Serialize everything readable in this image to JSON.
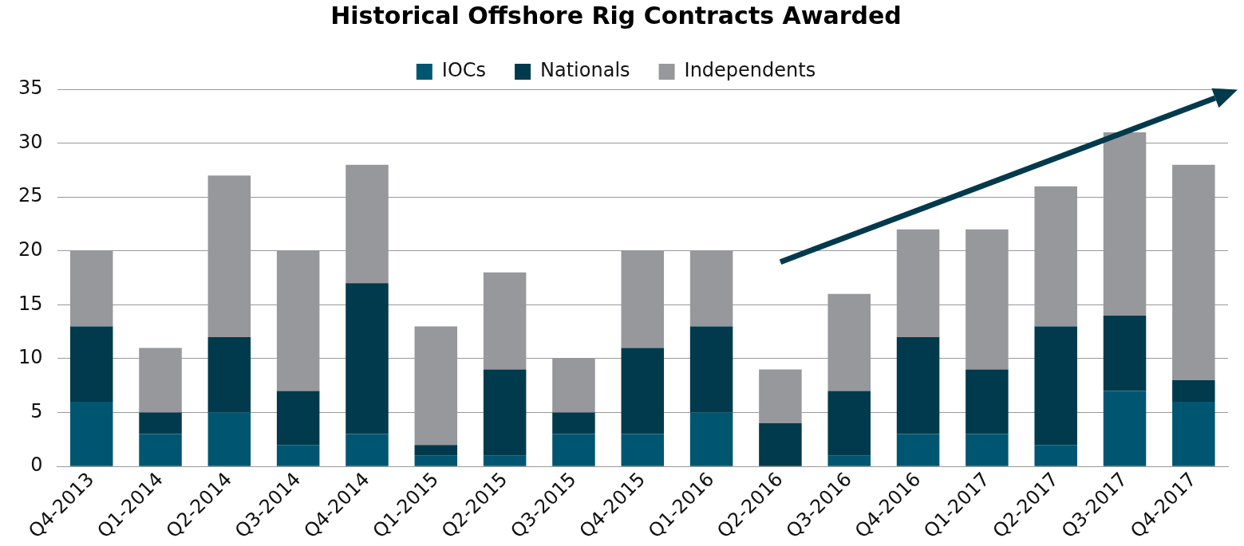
{
  "chart_data": {
    "type": "bar",
    "title": "Historical Offshore Rig Contracts Awarded",
    "stacked": true,
    "categories": [
      "Q4-2013",
      "Q1-2014",
      "Q2-2014",
      "Q3-2014",
      "Q4-2014",
      "Q1-2015",
      "Q2-2015",
      "Q3-2015",
      "Q4-2015",
      "Q1-2016",
      "Q2-2016",
      "Q3-2016",
      "Q4-2016",
      "Q1-2017",
      "Q2-2017",
      "Q3-2017",
      "Q4-2017"
    ],
    "series": [
      {
        "name": "IOCs",
        "color": "#005670",
        "values": [
          6,
          3,
          5,
          2,
          3,
          1,
          1,
          3,
          3,
          5,
          0,
          1,
          3,
          3,
          2,
          7,
          6
        ]
      },
      {
        "name": "Nationals",
        "color": "#003a4c",
        "values": [
          7,
          2,
          7,
          5,
          14,
          1,
          8,
          2,
          8,
          8,
          4,
          6,
          9,
          6,
          11,
          7,
          2
        ]
      },
      {
        "name": "Independents",
        "color": "#97989c",
        "values": [
          7,
          6,
          15,
          13,
          11,
          11,
          9,
          5,
          9,
          7,
          5,
          9,
          10,
          13,
          13,
          17,
          20
        ]
      }
    ],
    "ylim": [
      0,
      35
    ],
    "yticks": [
      0,
      5,
      10,
      15,
      20,
      25,
      30,
      35
    ],
    "grid": "y",
    "legend": "top"
  }
}
